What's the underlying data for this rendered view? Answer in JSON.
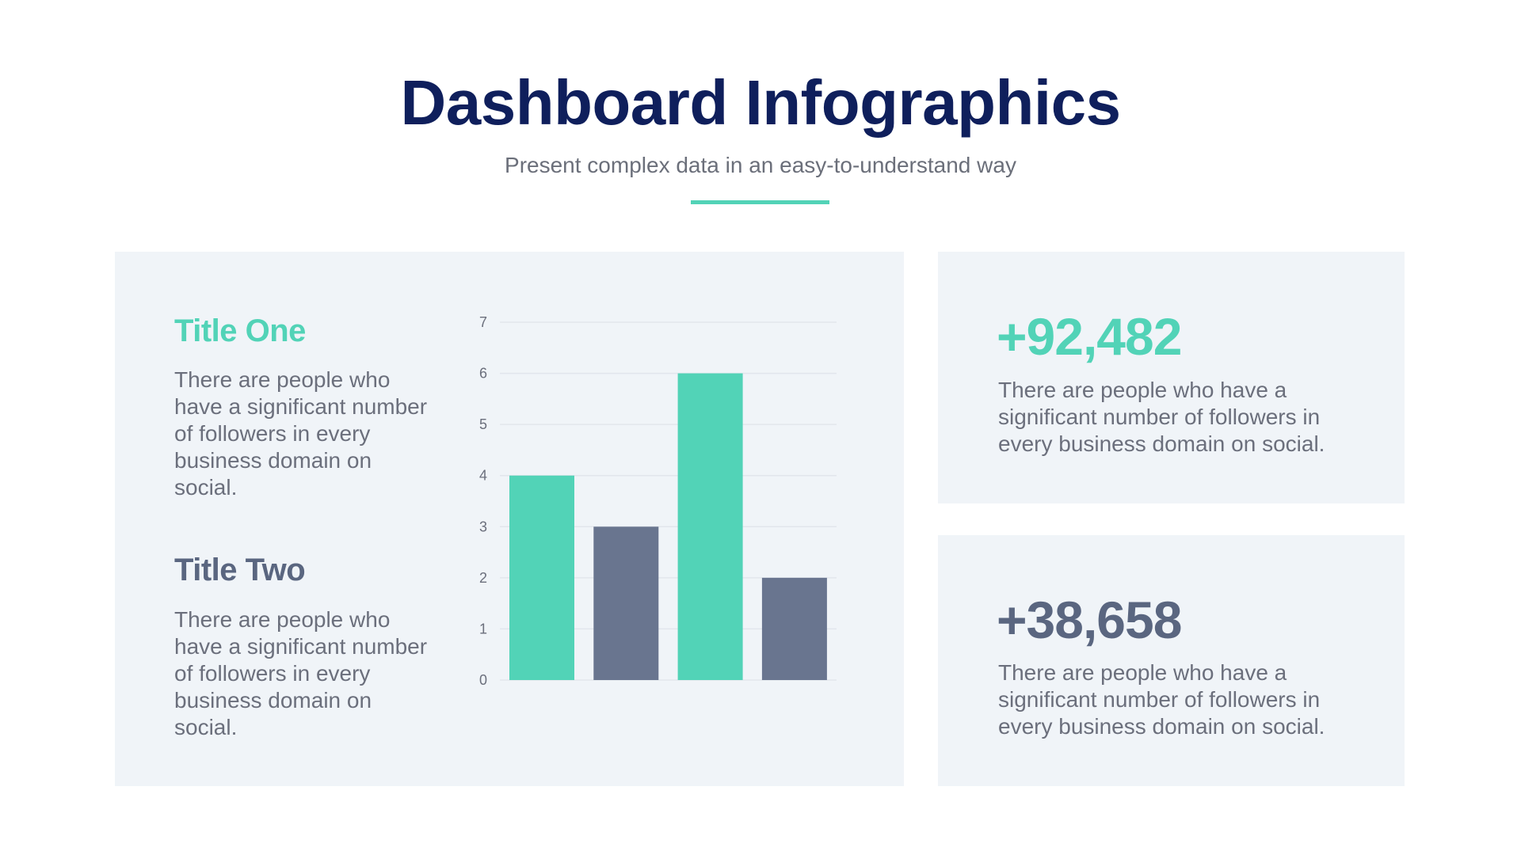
{
  "header": {
    "title": "Dashboard Infographics",
    "subtitle": "Present complex data in an easy-to-understand way"
  },
  "colors": {
    "accent": "#52d3b7",
    "secondary": "#69758f",
    "navy": "#0f1f5c",
    "panel": "#f0f4f8"
  },
  "left_panel": {
    "items": [
      {
        "title": "Title One",
        "text": "There are people who have a significant number of followers in every business domain on social."
      },
      {
        "title": "Title Two",
        "text": "There are people who have a significant number of followers in every business domain on social."
      }
    ]
  },
  "stats": [
    {
      "value": "+92,482",
      "text": "There are people who have a significant number of followers in every business domain on social."
    },
    {
      "value": "+38,658",
      "text": "There are people who have a significant number of followers in every business domain on social."
    }
  ],
  "chart_data": {
    "type": "bar",
    "categories": [
      "",
      "",
      "",
      ""
    ],
    "values": [
      4,
      3,
      6,
      2
    ],
    "bar_colors": [
      "#52d3b7",
      "#69758f",
      "#52d3b7",
      "#69758f"
    ],
    "ylim": [
      0,
      7
    ],
    "yticks": [
      "0",
      "1",
      "2",
      "3",
      "4",
      "5",
      "6",
      "7"
    ],
    "grid": true,
    "title": "",
    "xlabel": "",
    "ylabel": ""
  }
}
